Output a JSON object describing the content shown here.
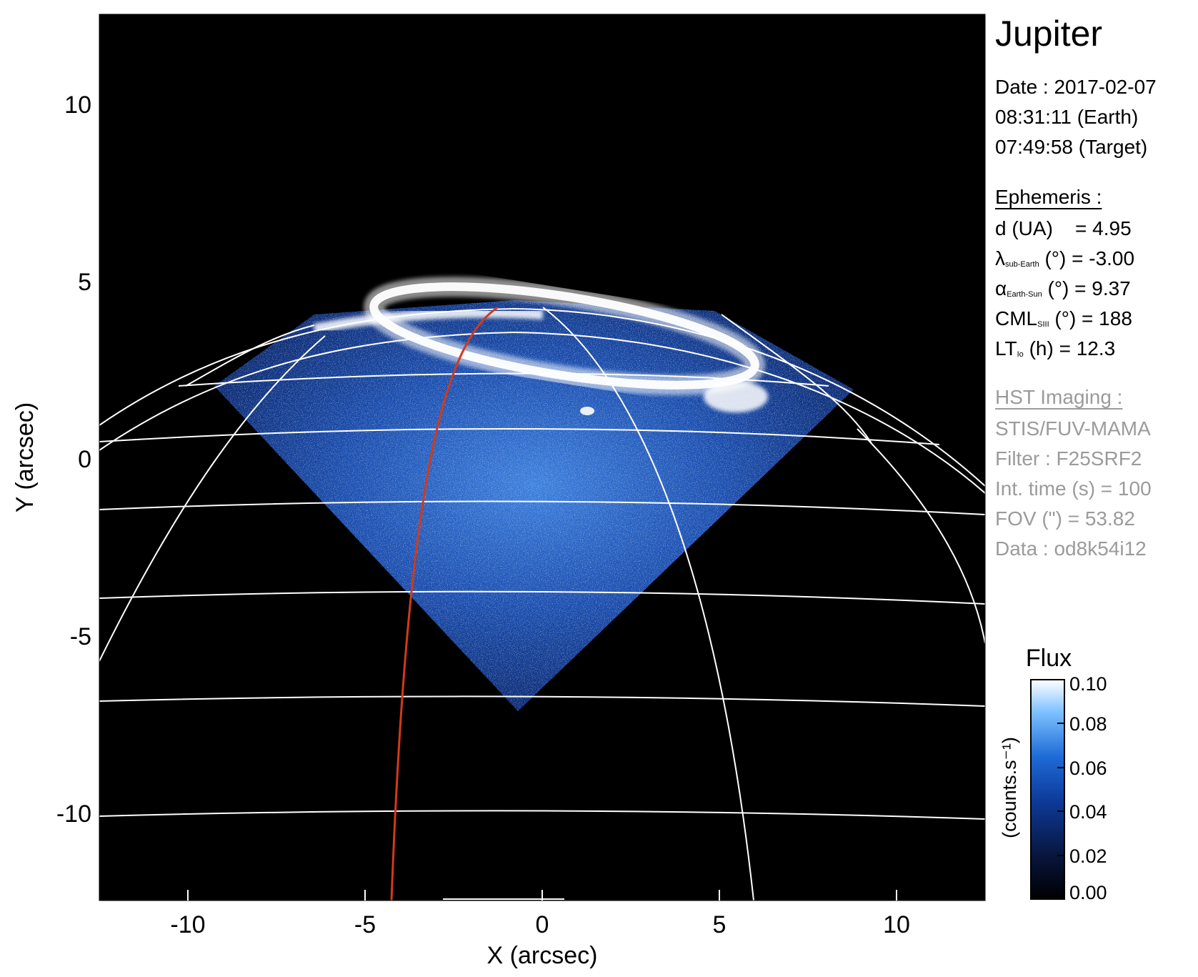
{
  "header": {
    "title": "Jupiter",
    "date_lines": [
      "Date : 2017-02-07",
      "08:31:11 (Earth)",
      "07:49:58 (Target)"
    ]
  },
  "ephemeris": {
    "heading": "Ephemeris :",
    "d_label": "d (UA)",
    "d_value": "= 4.95",
    "lambda_sym": "λ",
    "lambda_sub": "sub-Earth",
    "lambda_value": "(°) = -3.00",
    "alpha_sym": "α",
    "alpha_sub": "Earth-Sun",
    "alpha_value": "(°) = 9.37",
    "cml_sym": "CML",
    "cml_sub": "SIII",
    "cml_value": "(°) = 188",
    "lt_sym": "LT",
    "lt_sub": "Io",
    "lt_value": "(h) = 12.3"
  },
  "hst": {
    "heading": "HST Imaging :",
    "lines": [
      "STIS/FUV-MAMA",
      "Filter : F25SRF2",
      "Int. time (s) = 100",
      "FOV (\") = 53.82",
      "Data : od8k54i12"
    ]
  },
  "axes": {
    "xlabel": "X (arcsec)",
    "ylabel": "Y (arcsec)",
    "xrange": [
      -12.5,
      12.5
    ],
    "yrange": [
      -12.5,
      12.5
    ],
    "xticks": [
      "-10",
      "-5",
      "0",
      "5",
      "10"
    ],
    "yticks": [
      "10",
      "5",
      "0",
      "-5",
      "-10"
    ]
  },
  "colorbar": {
    "title": "Flux",
    "unit": "(counts.s⁻¹)",
    "ticks": [
      "0.10",
      "0.08",
      "0.06",
      "0.04",
      "0.02",
      "0.00"
    ],
    "range": [
      0.0,
      0.1
    ]
  },
  "colors": {
    "background": "#000000",
    "grid": "#ffffff",
    "io_footprint": "#d23a1a",
    "flux_low": "#000000",
    "flux_mid": "#1e6bd6",
    "flux_high": "#ffffff",
    "secondary_text": "#9b9b9b"
  }
}
